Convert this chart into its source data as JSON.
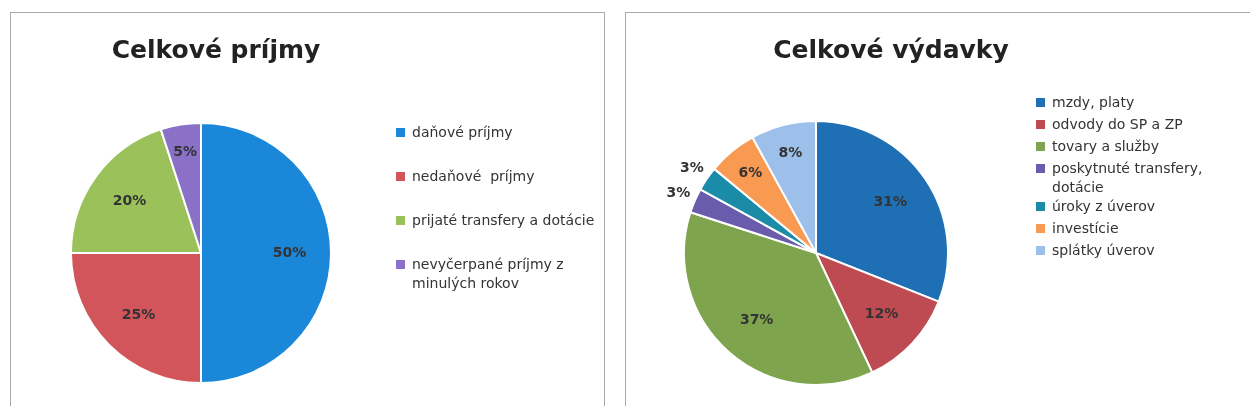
{
  "chart_data": [
    {
      "type": "pie",
      "title": "Celkové príjmy",
      "categories": [
        "daňové príjmy",
        "nedaňové  príjmy",
        "prijaté transfery a dotácie",
        "nevyčerpané príjmy z minulých rokov"
      ],
      "values": [
        50,
        25,
        20,
        5
      ],
      "colors": [
        "#1b87d8",
        "#d2555b",
        "#9bc15a",
        "#8a70c6"
      ],
      "value_labels": [
        "50%",
        "25%",
        "20%",
        "5%"
      ],
      "legend": "right"
    },
    {
      "type": "pie",
      "title": "Celkové výdavky",
      "categories": [
        "mzdy, platy",
        "odvody do SP a ZP",
        "tovary a služby",
        "poskytnuté transfery, dotácie",
        "úroky z úverov",
        "investície",
        "splátky úverov"
      ],
      "values": [
        31,
        12,
        37,
        3,
        3,
        6,
        8
      ],
      "colors": [
        "#1f6fb5",
        "#be4b52",
        "#7ea54e",
        "#6a5cad",
        "#1a8ca8",
        "#f99a52",
        "#9cc0ea"
      ],
      "value_labels": [
        "31%",
        "12%",
        "37%",
        "3%",
        "3%",
        "6%",
        "8%"
      ],
      "legend": "right"
    }
  ]
}
